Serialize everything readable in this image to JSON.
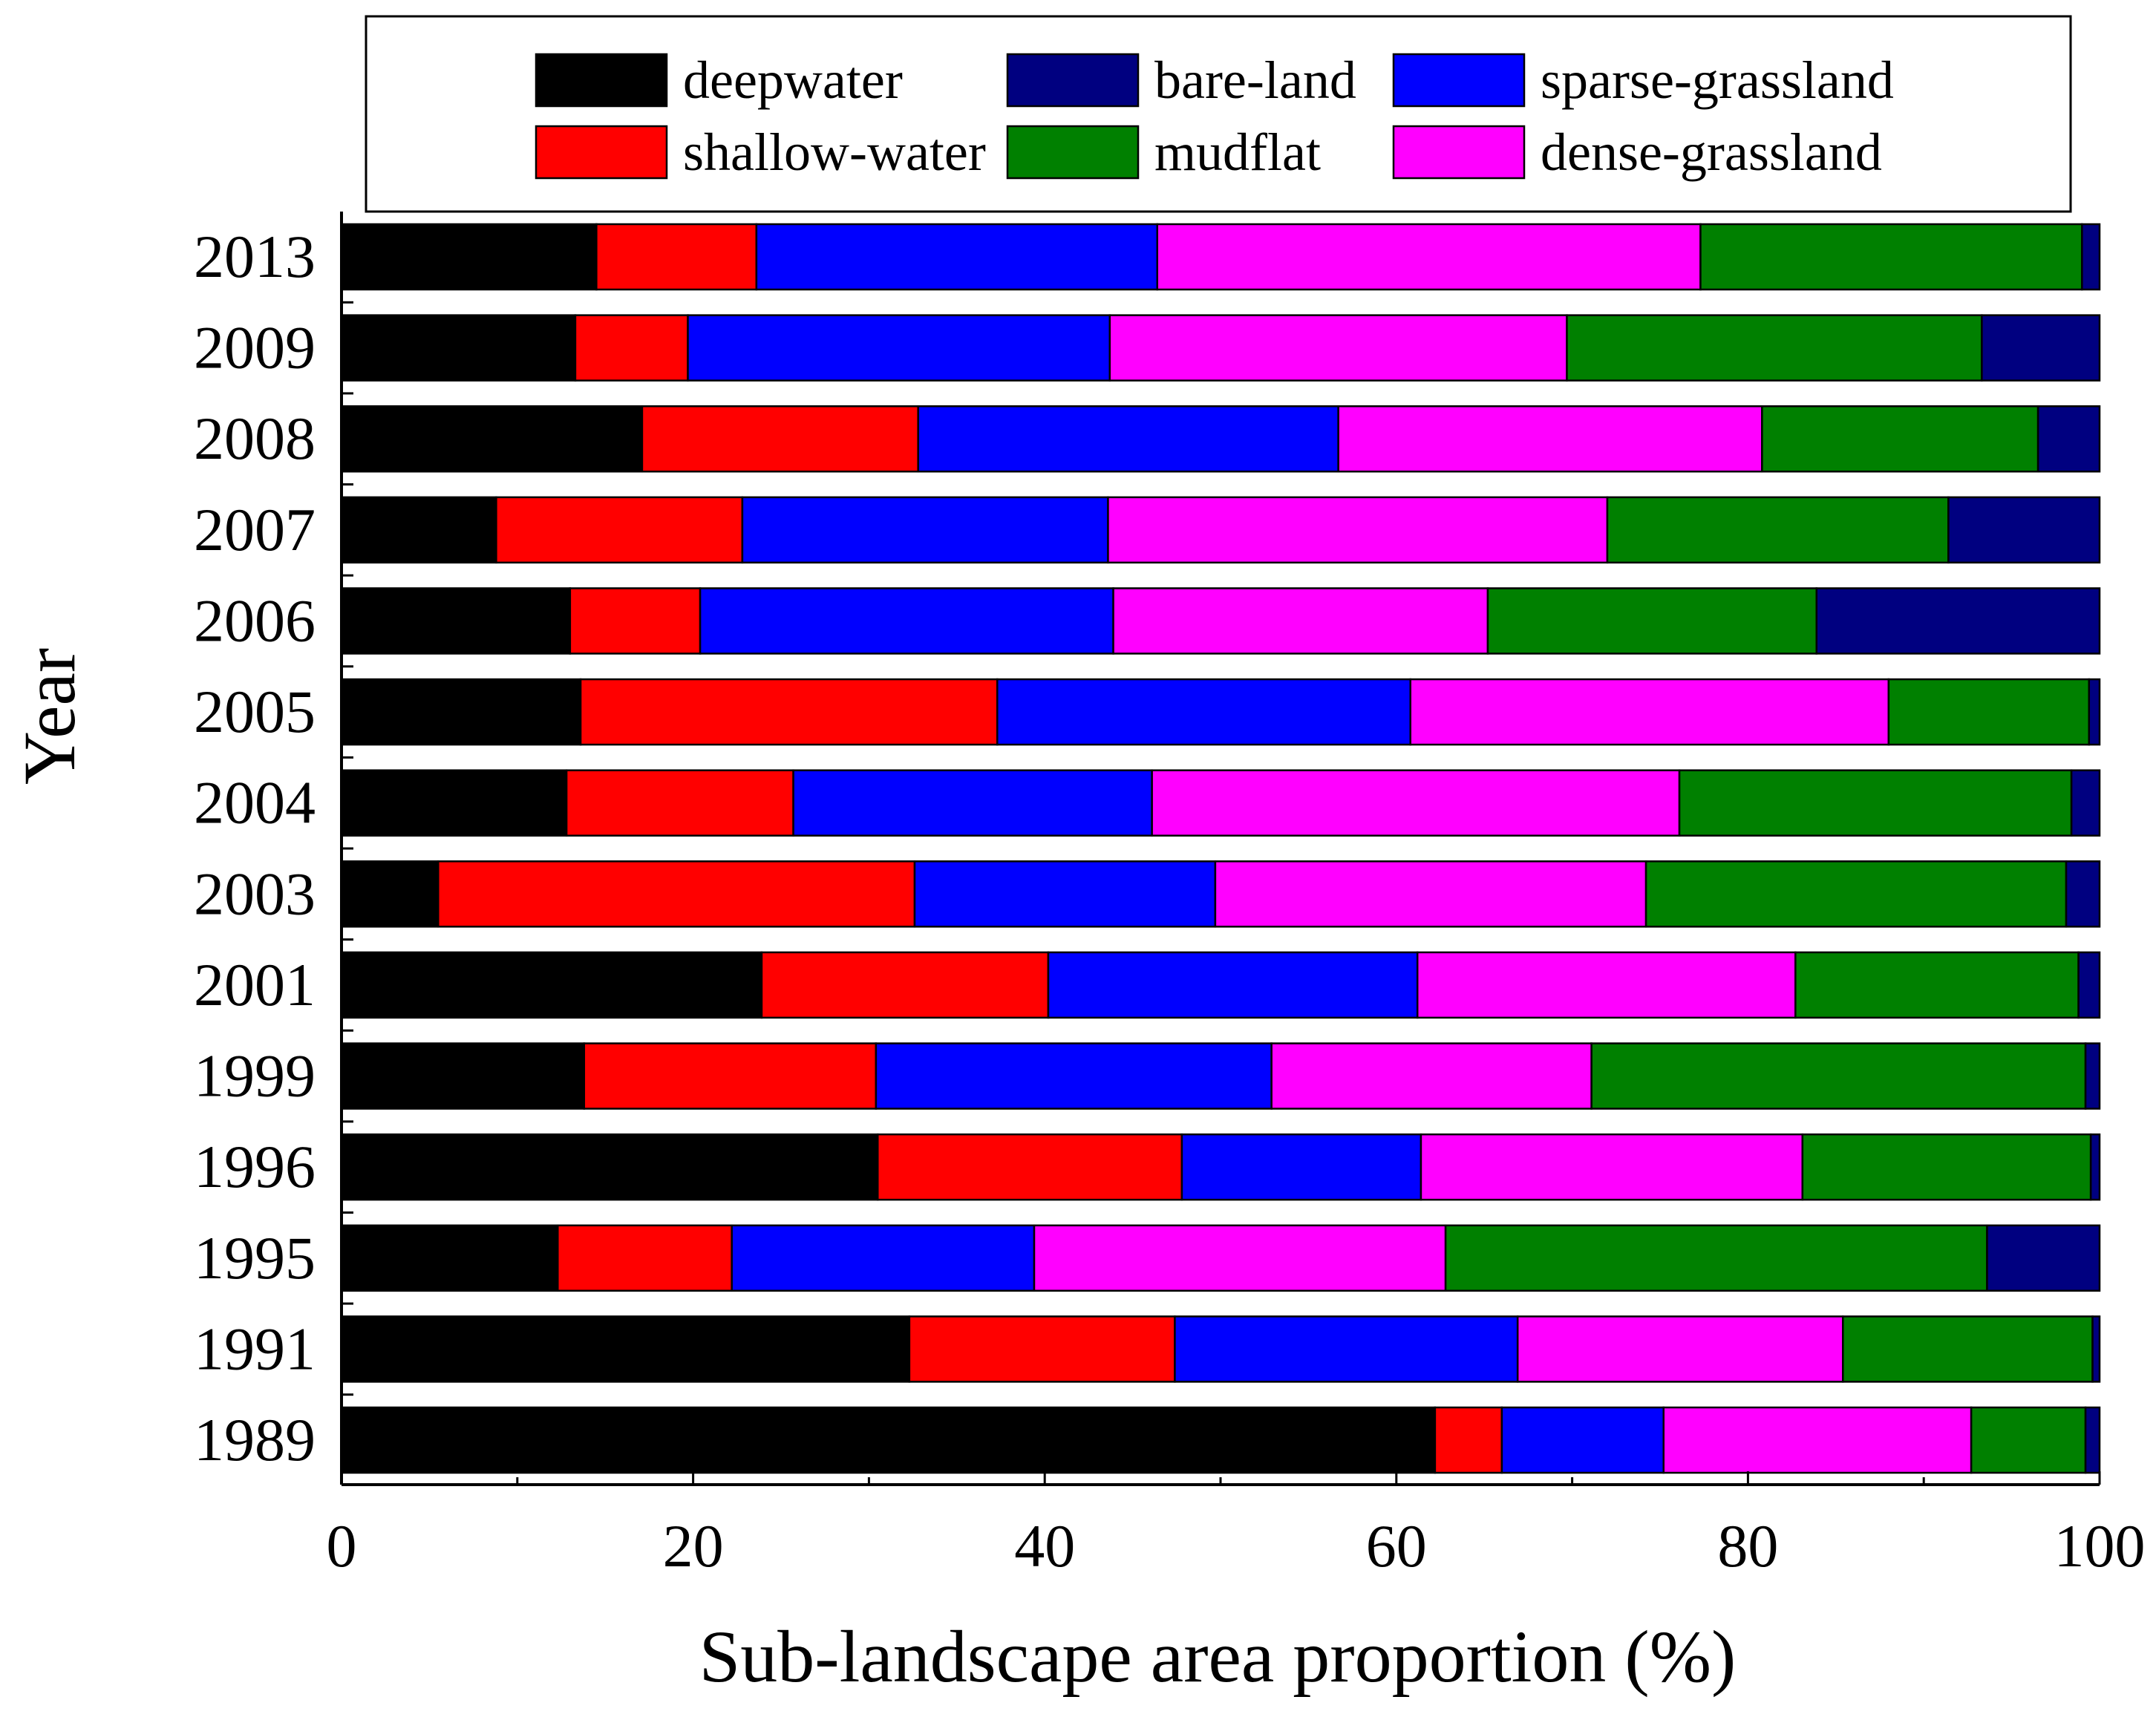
{
  "chart_data": {
    "type": "bar",
    "orientation": "horizontal",
    "stacked": true,
    "title": "",
    "xlabel": "Sub-landscape area proportion (%)",
    "ylabel": "Year",
    "xlim": [
      0,
      100
    ],
    "xticks": [
      0,
      20,
      40,
      60,
      80,
      100
    ],
    "grid": false,
    "legend_position": "top",
    "categories": [
      "2013",
      "2009",
      "2008",
      "2007",
      "2006",
      "2005",
      "2004",
      "2003",
      "2001",
      "1999",
      "1996",
      "1995",
      "1991",
      "1989"
    ],
    "series": [
      {
        "name": "deepwater",
        "color": "#000000",
        "values": [
          14.5,
          13.3,
          17.1,
          8.8,
          13.0,
          13.6,
          12.8,
          5.5,
          23.9,
          13.8,
          30.5,
          12.3,
          32.3,
          62.2
        ]
      },
      {
        "name": "shallow-water",
        "color": "#ff0000",
        "values": [
          9.1,
          6.4,
          15.7,
          14.0,
          7.4,
          23.7,
          12.9,
          27.1,
          16.3,
          16.6,
          17.3,
          9.9,
          15.1,
          3.8
        ]
      },
      {
        "name": "sparse-grassland",
        "color": "#0000ff",
        "values": [
          22.8,
          24.0,
          23.9,
          20.8,
          23.5,
          23.5,
          20.4,
          17.1,
          21.0,
          22.5,
          13.6,
          17.2,
          19.5,
          9.2
        ]
      },
      {
        "name": "dense-grassland",
        "color": "#ff00ff",
        "values": [
          30.9,
          26.0,
          24.1,
          28.4,
          21.3,
          27.2,
          30.0,
          24.5,
          21.5,
          18.2,
          21.7,
          23.4,
          18.5,
          17.5
        ]
      },
      {
        "name": "mudflat",
        "color": "#008000",
        "values": [
          21.7,
          23.6,
          15.7,
          19.4,
          18.7,
          11.4,
          22.3,
          23.9,
          16.1,
          28.1,
          16.4,
          30.8,
          14.2,
          6.5
        ]
      },
      {
        "name": "bare-land",
        "color": "#000080",
        "values": [
          1.0,
          6.7,
          3.5,
          8.6,
          16.1,
          0.6,
          1.6,
          1.9,
          1.2,
          0.8,
          0.5,
          6.4,
          0.4,
          0.8
        ]
      }
    ],
    "legend_order": [
      "deepwater",
      "bare-land",
      "sparse-grassland",
      "shallow-water",
      "mudflat",
      "dense-grassland"
    ]
  }
}
